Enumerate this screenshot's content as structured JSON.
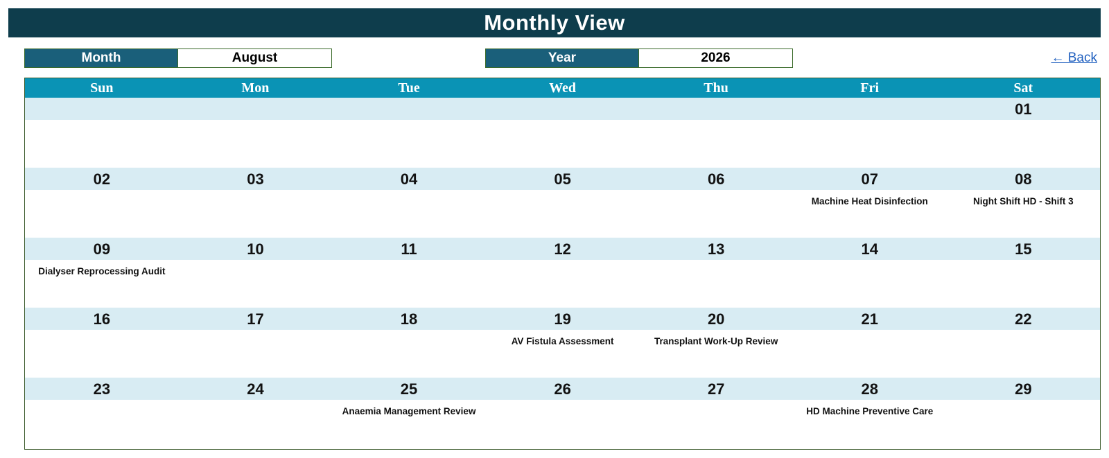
{
  "title": "Monthly View",
  "month": {
    "label": "Month",
    "value": "August"
  },
  "year": {
    "label": "Year",
    "value": "2026"
  },
  "back_link": "← Back",
  "weekdays": [
    "Sun",
    "Mon",
    "Tue",
    "Wed",
    "Thu",
    "Fri",
    "Sat"
  ],
  "weeks": [
    [
      {
        "day": "",
        "event": ""
      },
      {
        "day": "",
        "event": ""
      },
      {
        "day": "",
        "event": ""
      },
      {
        "day": "",
        "event": ""
      },
      {
        "day": "",
        "event": ""
      },
      {
        "day": "",
        "event": ""
      },
      {
        "day": "01",
        "event": ""
      }
    ],
    [
      {
        "day": "02",
        "event": ""
      },
      {
        "day": "03",
        "event": ""
      },
      {
        "day": "04",
        "event": ""
      },
      {
        "day": "05",
        "event": ""
      },
      {
        "day": "06",
        "event": ""
      },
      {
        "day": "07",
        "event": "Machine Heat Disinfection"
      },
      {
        "day": "08",
        "event": "Night Shift HD - Shift 3"
      }
    ],
    [
      {
        "day": "09",
        "event": "Dialyser Reprocessing Audit"
      },
      {
        "day": "10",
        "event": ""
      },
      {
        "day": "11",
        "event": ""
      },
      {
        "day": "12",
        "event": ""
      },
      {
        "day": "13",
        "event": ""
      },
      {
        "day": "14",
        "event": ""
      },
      {
        "day": "15",
        "event": ""
      }
    ],
    [
      {
        "day": "16",
        "event": ""
      },
      {
        "day": "17",
        "event": ""
      },
      {
        "day": "18",
        "event": ""
      },
      {
        "day": "19",
        "event": "AV Fistula Assessment"
      },
      {
        "day": "20",
        "event": "Transplant Work-Up Review"
      },
      {
        "day": "21",
        "event": ""
      },
      {
        "day": "22",
        "event": ""
      }
    ],
    [
      {
        "day": "23",
        "event": ""
      },
      {
        "day": "24",
        "event": ""
      },
      {
        "day": "25",
        "event": "Anaemia Management Review"
      },
      {
        "day": "26",
        "event": ""
      },
      {
        "day": "27",
        "event": ""
      },
      {
        "day": "28",
        "event": "HD Machine Preventive Care"
      },
      {
        "day": "29",
        "event": ""
      }
    ]
  ],
  "colors": {
    "title_bg": "#0e3d4c",
    "label_bg": "#1a5f7a",
    "weekday_bg": "#0a93b5",
    "date_band": "#d8ecf3",
    "link": "#1f5fbf"
  }
}
